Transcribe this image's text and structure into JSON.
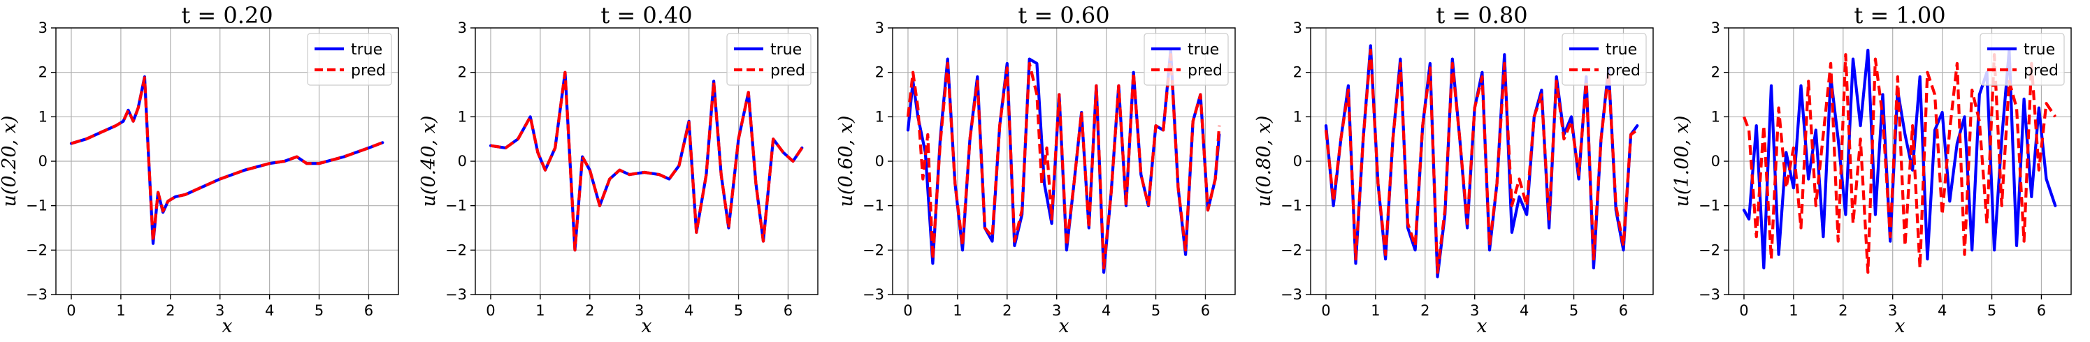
{
  "chart_data": [
    {
      "type": "line",
      "title": "t = 0.20",
      "xlabel": "x",
      "ylabel": "u(0.20, x)",
      "xlim": [
        -0.31,
        6.6
      ],
      "ylim": [
        -3,
        3
      ],
      "xticks": [
        "0",
        "1",
        "2",
        "3",
        "4",
        "5",
        "6"
      ],
      "yticks": [
        "−3",
        "−2",
        "−1",
        "0",
        "1",
        "2",
        "3"
      ],
      "grid": true,
      "legend": "top-right",
      "series": [
        {
          "name": "true",
          "color": "#0000ff",
          "style": "solid",
          "x": [
            0,
            0.3,
            0.6,
            0.9,
            1.05,
            1.15,
            1.25,
            1.35,
            1.48,
            1.55,
            1.65,
            1.75,
            1.85,
            1.95,
            2.1,
            2.3,
            2.6,
            3.0,
            3.5,
            4.0,
            4.3,
            4.55,
            4.75,
            5.0,
            5.5,
            6.0,
            6.28
          ],
          "y": [
            0.4,
            0.5,
            0.65,
            0.8,
            0.9,
            1.15,
            0.9,
            1.2,
            1.9,
            0.3,
            -1.85,
            -0.7,
            -1.15,
            -0.9,
            -0.8,
            -0.75,
            -0.6,
            -0.4,
            -0.2,
            -0.05,
            0.0,
            0.1,
            -0.05,
            -0.05,
            0.1,
            0.3,
            0.42
          ]
        },
        {
          "name": "pred",
          "color": "#ff0000",
          "style": "dashed",
          "x": [
            0,
            0.3,
            0.6,
            0.9,
            1.05,
            1.15,
            1.25,
            1.35,
            1.48,
            1.55,
            1.65,
            1.75,
            1.85,
            1.95,
            2.1,
            2.3,
            2.6,
            3.0,
            3.5,
            4.0,
            4.3,
            4.55,
            4.75,
            5.0,
            5.5,
            6.0,
            6.28
          ],
          "y": [
            0.4,
            0.5,
            0.65,
            0.8,
            0.9,
            1.15,
            0.9,
            1.2,
            1.88,
            0.3,
            -1.8,
            -0.7,
            -1.12,
            -0.9,
            -0.8,
            -0.75,
            -0.6,
            -0.4,
            -0.2,
            -0.05,
            0.0,
            0.1,
            -0.05,
            -0.05,
            0.1,
            0.3,
            0.42
          ]
        }
      ]
    },
    {
      "type": "line",
      "title": "t = 0.40",
      "xlabel": "x",
      "ylabel": "u(0.40, x)",
      "xlim": [
        -0.31,
        6.6
      ],
      "ylim": [
        -3,
        3
      ],
      "xticks": [
        "0",
        "1",
        "2",
        "3",
        "4",
        "5",
        "6"
      ],
      "yticks": [
        "−3",
        "−2",
        "−1",
        "0",
        "1",
        "2",
        "3"
      ],
      "grid": true,
      "legend": "top-right",
      "series": [
        {
          "name": "true",
          "color": "#0000ff",
          "style": "solid",
          "x": [
            0,
            0.3,
            0.55,
            0.8,
            0.95,
            1.1,
            1.3,
            1.5,
            1.7,
            1.85,
            2.0,
            2.2,
            2.4,
            2.6,
            2.8,
            3.1,
            3.4,
            3.6,
            3.8,
            4.0,
            4.15,
            4.35,
            4.5,
            4.65,
            4.8,
            5.0,
            5.2,
            5.35,
            5.5,
            5.7,
            5.9,
            6.1,
            6.28
          ],
          "y": [
            0.35,
            0.3,
            0.5,
            1.0,
            0.2,
            -0.2,
            0.3,
            2.0,
            -2.0,
            0.1,
            -0.2,
            -1.0,
            -0.4,
            -0.2,
            -0.3,
            -0.25,
            -0.3,
            -0.4,
            -0.1,
            0.9,
            -1.6,
            -0.3,
            1.8,
            -0.3,
            -1.5,
            0.5,
            1.55,
            -0.5,
            -1.8,
            0.5,
            0.2,
            0.0,
            0.3
          ]
        },
        {
          "name": "pred",
          "color": "#ff0000",
          "style": "dashed",
          "x": [
            0,
            0.3,
            0.55,
            0.8,
            0.95,
            1.1,
            1.3,
            1.5,
            1.7,
            1.85,
            2.0,
            2.2,
            2.4,
            2.6,
            2.8,
            3.1,
            3.4,
            3.6,
            3.8,
            4.0,
            4.15,
            4.35,
            4.5,
            4.65,
            4.8,
            5.0,
            5.2,
            5.35,
            5.5,
            5.7,
            5.9,
            6.1,
            6.28
          ],
          "y": [
            0.35,
            0.3,
            0.5,
            1.0,
            0.2,
            -0.2,
            0.3,
            2.0,
            -2.0,
            0.1,
            -0.2,
            -1.0,
            -0.4,
            -0.2,
            -0.3,
            -0.25,
            -0.3,
            -0.4,
            -0.1,
            0.88,
            -1.6,
            -0.3,
            1.78,
            -0.3,
            -1.5,
            0.5,
            1.55,
            -0.5,
            -1.8,
            0.5,
            0.2,
            0.0,
            0.3
          ]
        }
      ]
    },
    {
      "type": "line",
      "title": "t = 0.60",
      "xlabel": "x",
      "ylabel": "u(0.60, x)",
      "xlim": [
        -0.31,
        6.6
      ],
      "ylim": [
        -3,
        3
      ],
      "xticks": [
        "0",
        "1",
        "2",
        "3",
        "4",
        "5",
        "6"
      ],
      "yticks": [
        "−3",
        "−2",
        "−1",
        "0",
        "1",
        "2",
        "3"
      ],
      "grid": true,
      "legend": "top-right",
      "series": [
        {
          "name": "true",
          "color": "#0000ff",
          "style": "solid",
          "x": [
            0,
            0.1,
            0.2,
            0.35,
            0.5,
            0.65,
            0.8,
            0.95,
            1.1,
            1.25,
            1.4,
            1.55,
            1.7,
            1.85,
            2.0,
            2.15,
            2.3,
            2.45,
            2.6,
            2.75,
            2.9,
            3.05,
            3.2,
            3.35,
            3.5,
            3.65,
            3.8,
            3.95,
            4.1,
            4.25,
            4.4,
            4.55,
            4.7,
            4.85,
            5.0,
            5.15,
            5.3,
            5.45,
            5.6,
            5.75,
            5.9,
            6.05,
            6.2,
            6.28
          ],
          "y": [
            0.7,
            1.8,
            1.0,
            0.2,
            -2.3,
            0.5,
            2.3,
            -0.5,
            -2.0,
            0.5,
            1.9,
            -1.5,
            -1.8,
            0.8,
            2.2,
            -1.9,
            -1.2,
            2.3,
            2.2,
            -0.5,
            -1.4,
            1.5,
            -2.0,
            -0.5,
            1.1,
            -1.5,
            1.7,
            -2.5,
            -0.7,
            1.7,
            -1.0,
            2.0,
            -0.3,
            -1.0,
            0.8,
            0.7,
            2.5,
            -0.6,
            -2.1,
            0.9,
            1.5,
            -1.1,
            -0.4,
            0.6
          ]
        },
        {
          "name": "pred",
          "color": "#ff0000",
          "style": "dashed",
          "x": [
            0,
            0.1,
            0.2,
            0.3,
            0.4,
            0.5,
            0.65,
            0.8,
            0.95,
            1.1,
            1.25,
            1.4,
            1.55,
            1.7,
            1.85,
            2.0,
            2.15,
            2.3,
            2.45,
            2.6,
            2.7,
            2.8,
            2.9,
            3.05,
            3.2,
            3.35,
            3.5,
            3.65,
            3.8,
            3.95,
            4.1,
            4.25,
            4.4,
            4.55,
            4.7,
            4.85,
            5.0,
            5.15,
            5.3,
            5.45,
            5.6,
            5.75,
            5.9,
            6.05,
            6.2,
            6.28
          ],
          "y": [
            1.0,
            2.0,
            1.2,
            -0.4,
            0.6,
            -2.2,
            0.4,
            2.2,
            -0.5,
            -1.9,
            0.5,
            1.8,
            -1.5,
            -1.7,
            0.8,
            2.1,
            -1.8,
            -1.1,
            2.2,
            1.5,
            -0.5,
            0.3,
            -1.3,
            1.5,
            -1.9,
            -0.5,
            1.1,
            -1.5,
            1.7,
            -2.4,
            -0.7,
            1.7,
            -1.0,
            2.0,
            -0.3,
            -1.0,
            0.8,
            0.7,
            2.4,
            -0.6,
            -2.0,
            0.9,
            1.5,
            -1.1,
            -0.4,
            0.8
          ]
        }
      ]
    },
    {
      "type": "line",
      "title": "t = 0.80",
      "xlabel": "x",
      "ylabel": "u(0.80, x)",
      "xlim": [
        -0.31,
        6.6
      ],
      "ylim": [
        -3,
        3
      ],
      "xticks": [
        "0",
        "1",
        "2",
        "3",
        "4",
        "5",
        "6"
      ],
      "yticks": [
        "−3",
        "−2",
        "−1",
        "0",
        "1",
        "2",
        "3"
      ],
      "grid": true,
      "legend": "top-right",
      "series": [
        {
          "name": "true",
          "color": "#0000ff",
          "style": "solid",
          "x": [
            0,
            0.15,
            0.3,
            0.45,
            0.6,
            0.75,
            0.9,
            1.05,
            1.2,
            1.35,
            1.5,
            1.65,
            1.8,
            1.95,
            2.1,
            2.25,
            2.4,
            2.55,
            2.7,
            2.85,
            3.0,
            3.15,
            3.3,
            3.45,
            3.6,
            3.75,
            3.9,
            4.05,
            4.2,
            4.35,
            4.5,
            4.65,
            4.8,
            4.95,
            5.1,
            5.25,
            5.4,
            5.55,
            5.7,
            5.85,
            6.0,
            6.15,
            6.28
          ],
          "y": [
            0.8,
            -1.0,
            0.5,
            1.7,
            -2.3,
            0.5,
            2.6,
            -0.5,
            -2.2,
            0.5,
            2.3,
            -1.5,
            -2.0,
            0.8,
            2.2,
            -2.6,
            -1.2,
            2.3,
            0.5,
            -1.5,
            1.2,
            2.0,
            -2.0,
            -0.5,
            2.4,
            -1.6,
            -0.8,
            -1.2,
            1.0,
            1.6,
            -1.5,
            1.9,
            0.6,
            1.0,
            -0.4,
            1.9,
            -2.4,
            0.5,
            2.1,
            -1.1,
            -2.0,
            0.6,
            0.8
          ]
        },
        {
          "name": "pred",
          "color": "#ff0000",
          "style": "dashed",
          "x": [
            0,
            0.15,
            0.3,
            0.45,
            0.6,
            0.75,
            0.9,
            1.05,
            1.2,
            1.35,
            1.5,
            1.65,
            1.8,
            1.95,
            2.1,
            2.25,
            2.4,
            2.55,
            2.7,
            2.85,
            3.0,
            3.15,
            3.3,
            3.45,
            3.6,
            3.75,
            3.9,
            4.05,
            4.2,
            4.35,
            4.5,
            4.65,
            4.8,
            4.95,
            5.1,
            5.25,
            5.4,
            5.55,
            5.7,
            5.85,
            6.0,
            6.15,
            6.28
          ],
          "y": [
            0.7,
            -0.9,
            0.5,
            1.6,
            -2.2,
            0.5,
            2.5,
            -0.5,
            -2.1,
            0.5,
            2.2,
            -1.4,
            -1.9,
            0.8,
            2.1,
            -2.5,
            -1.1,
            2.2,
            0.5,
            -1.4,
            1.2,
            1.9,
            -1.9,
            -0.5,
            2.2,
            -1.0,
            -0.4,
            -1.0,
            1.0,
            1.5,
            -1.3,
            1.8,
            0.5,
            0.9,
            -0.3,
            1.8,
            -2.2,
            0.5,
            2.0,
            -1.0,
            -1.9,
            0.6,
            0.7
          ]
        }
      ]
    },
    {
      "type": "line",
      "title": "t = 1.00",
      "xlabel": "x",
      "ylabel": "u(1.00, x)",
      "xlim": [
        -0.31,
        6.6
      ],
      "ylim": [
        -3,
        3
      ],
      "xticks": [
        "0",
        "1",
        "2",
        "3",
        "4",
        "5",
        "6"
      ],
      "yticks": [
        "−3",
        "−2",
        "−1",
        "0",
        "1",
        "2",
        "3"
      ],
      "grid": true,
      "legend": "top-right",
      "series": [
        {
          "name": "true",
          "color": "#0000ff",
          "style": "solid",
          "x": [
            0,
            0.1,
            0.25,
            0.4,
            0.55,
            0.7,
            0.85,
            1.0,
            1.15,
            1.3,
            1.45,
            1.6,
            1.75,
            1.9,
            2.05,
            2.2,
            2.35,
            2.5,
            2.65,
            2.8,
            2.95,
            3.1,
            3.25,
            3.4,
            3.55,
            3.7,
            3.85,
            4.0,
            4.15,
            4.3,
            4.45,
            4.6,
            4.75,
            4.9,
            5.05,
            5.2,
            5.35,
            5.5,
            5.65,
            5.8,
            5.95,
            6.1,
            6.28
          ],
          "y": [
            -1.1,
            -1.3,
            0.8,
            -2.4,
            1.7,
            -2.1,
            0.2,
            -0.6,
            1.7,
            -0.4,
            0.7,
            -1.7,
            1.9,
            0.5,
            -1.2,
            2.3,
            0.8,
            2.5,
            -1.2,
            1.5,
            -1.8,
            1.6,
            0.6,
            -0.2,
            1.9,
            -2.2,
            0.7,
            1.1,
            -0.9,
            0.4,
            1.0,
            -2.0,
            1.5,
            2.0,
            -2.0,
            0.5,
            2.5,
            -1.9,
            1.4,
            -0.8,
            1.2,
            -0.4,
            -1.0
          ]
        },
        {
          "name": "pred",
          "color": "#ff0000",
          "style": "dashed",
          "x": [
            0,
            0.1,
            0.25,
            0.4,
            0.55,
            0.7,
            0.85,
            1.0,
            1.15,
            1.3,
            1.45,
            1.6,
            1.75,
            1.9,
            2.05,
            2.2,
            2.35,
            2.5,
            2.65,
            2.8,
            2.95,
            3.1,
            3.25,
            3.4,
            3.55,
            3.7,
            3.85,
            4.0,
            4.15,
            4.3,
            4.45,
            4.6,
            4.75,
            4.9,
            5.05,
            5.2,
            5.35,
            5.5,
            5.65,
            5.8,
            5.95,
            6.1,
            6.28
          ],
          "y": [
            1.0,
            0.7,
            -1.7,
            0.8,
            -2.2,
            1.2,
            -0.6,
            0.3,
            -1.5,
            1.8,
            -1.0,
            0.6,
            2.2,
            -1.8,
            2.4,
            -1.4,
            0.5,
            -2.5,
            2.3,
            1.0,
            -1.7,
            1.9,
            -1.9,
            0.8,
            -2.4,
            2.0,
            1.5,
            -1.2,
            0.7,
            2.2,
            -2.1,
            1.6,
            0.9,
            -1.4,
            2.4,
            -1.0,
            1.8,
            1.2,
            -1.8,
            2.2,
            -0.2,
            1.3,
            1.0
          ]
        }
      ]
    }
  ]
}
